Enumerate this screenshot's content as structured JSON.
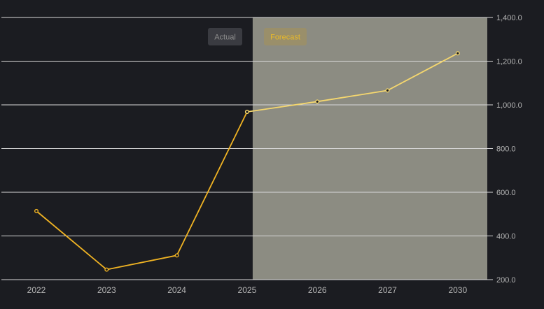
{
  "colors": {
    "background": "#1b1c21",
    "forecast_region": "#8c8c82",
    "gridline": "#d9d9d9",
    "actual_line": "#f0b323",
    "forecast_line": "#f5d76e",
    "tick_text": "#b5b5b5",
    "actual_badge_bg": "#3a3b41",
    "actual_badge_text": "#8e8e8e",
    "forecast_badge_bg": "#9a8f6a",
    "forecast_badge_text": "#e8b92a"
  },
  "legend": {
    "actual_label": "Actual",
    "forecast_label": "Forecast"
  },
  "chart_data": {
    "type": "line",
    "categories": [
      "2022",
      "2023",
      "2024",
      "2025",
      "2026",
      "2027",
      "2030"
    ],
    "series": [
      {
        "name": "Actual",
        "values": [
          514,
          246,
          311,
          968,
          null,
          null,
          null
        ]
      },
      {
        "name": "Forecast",
        "values": [
          null,
          null,
          null,
          968,
          1015,
          1066,
          1236
        ]
      }
    ],
    "forecast_start_category": "2025",
    "y_ticks": [
      "200.0",
      "400.0",
      "600.0",
      "800.0",
      "1,000.0",
      "1,200.0",
      "1,400.0"
    ],
    "ylim": [
      200,
      1400
    ],
    "y_axis_position": "right",
    "grid": true,
    "title": "",
    "xlabel": "",
    "ylabel": ""
  }
}
